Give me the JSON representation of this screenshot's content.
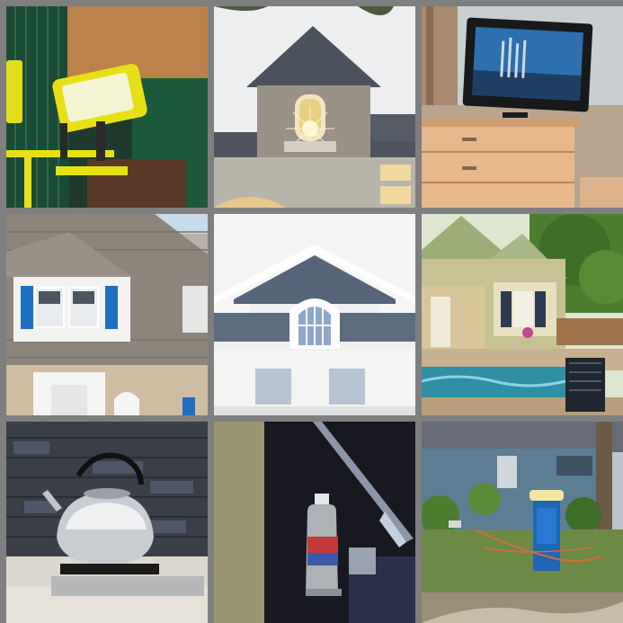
{
  "image": {
    "layout": "3x3 photo grid",
    "tiles": [
      {
        "subject": "yellow-work-light"
      },
      {
        "subject": "house-dormer-sunset"
      },
      {
        "subject": "tv-on-dresser"
      },
      {
        "subject": "cape-cod-dormer-blue-shutters"
      },
      {
        "subject": "white-gable-window"
      },
      {
        "subject": "pool-house"
      },
      {
        "subject": "tea-kettle-on-stove"
      },
      {
        "subject": "water-bottle-dark"
      },
      {
        "subject": "blue-house-porta-potty"
      }
    ]
  },
  "colors": {
    "frame": "#7f7f7f",
    "accent_yellow": "#e8e017",
    "shutter_blue": "#1f6fc0",
    "sky": "#f2f4f6"
  }
}
